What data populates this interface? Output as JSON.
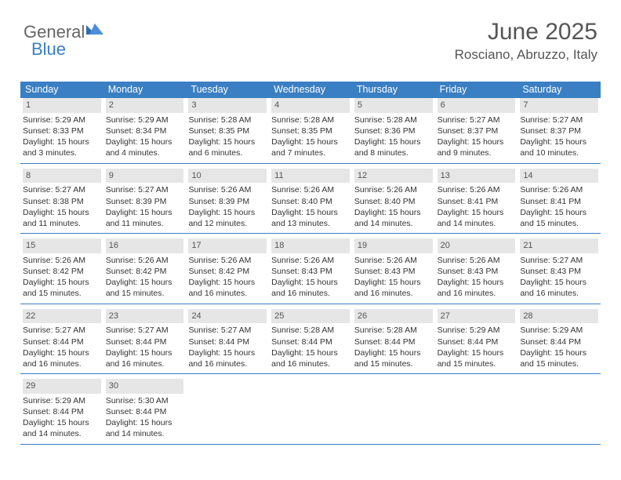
{
  "logo": {
    "general": "General",
    "blue": "Blue"
  },
  "header": {
    "month_title": "June 2025",
    "location": "Rosciano, Abruzzo, Italy"
  },
  "colors": {
    "header_bg": "#3a7fc4",
    "header_text": "#ffffff",
    "daynum_bg": "#e6e6e6",
    "rule": "#3a7fc4",
    "body_text": "#333333",
    "title_text": "#555555"
  },
  "day_names": [
    "Sunday",
    "Monday",
    "Tuesday",
    "Wednesday",
    "Thursday",
    "Friday",
    "Saturday"
  ],
  "weeks": [
    [
      {
        "n": "1",
        "sunrise": "5:29 AM",
        "sunset": "8:33 PM",
        "daylight": "15 hours and 3 minutes."
      },
      {
        "n": "2",
        "sunrise": "5:29 AM",
        "sunset": "8:34 PM",
        "daylight": "15 hours and 4 minutes."
      },
      {
        "n": "3",
        "sunrise": "5:28 AM",
        "sunset": "8:35 PM",
        "daylight": "15 hours and 6 minutes."
      },
      {
        "n": "4",
        "sunrise": "5:28 AM",
        "sunset": "8:35 PM",
        "daylight": "15 hours and 7 minutes."
      },
      {
        "n": "5",
        "sunrise": "5:28 AM",
        "sunset": "8:36 PM",
        "daylight": "15 hours and 8 minutes."
      },
      {
        "n": "6",
        "sunrise": "5:27 AM",
        "sunset": "8:37 PM",
        "daylight": "15 hours and 9 minutes."
      },
      {
        "n": "7",
        "sunrise": "5:27 AM",
        "sunset": "8:37 PM",
        "daylight": "15 hours and 10 minutes."
      }
    ],
    [
      {
        "n": "8",
        "sunrise": "5:27 AM",
        "sunset": "8:38 PM",
        "daylight": "15 hours and 11 minutes."
      },
      {
        "n": "9",
        "sunrise": "5:27 AM",
        "sunset": "8:39 PM",
        "daylight": "15 hours and 11 minutes."
      },
      {
        "n": "10",
        "sunrise": "5:26 AM",
        "sunset": "8:39 PM",
        "daylight": "15 hours and 12 minutes."
      },
      {
        "n": "11",
        "sunrise": "5:26 AM",
        "sunset": "8:40 PM",
        "daylight": "15 hours and 13 minutes."
      },
      {
        "n": "12",
        "sunrise": "5:26 AM",
        "sunset": "8:40 PM",
        "daylight": "15 hours and 14 minutes."
      },
      {
        "n": "13",
        "sunrise": "5:26 AM",
        "sunset": "8:41 PM",
        "daylight": "15 hours and 14 minutes."
      },
      {
        "n": "14",
        "sunrise": "5:26 AM",
        "sunset": "8:41 PM",
        "daylight": "15 hours and 15 minutes."
      }
    ],
    [
      {
        "n": "15",
        "sunrise": "5:26 AM",
        "sunset": "8:42 PM",
        "daylight": "15 hours and 15 minutes."
      },
      {
        "n": "16",
        "sunrise": "5:26 AM",
        "sunset": "8:42 PM",
        "daylight": "15 hours and 15 minutes."
      },
      {
        "n": "17",
        "sunrise": "5:26 AM",
        "sunset": "8:42 PM",
        "daylight": "15 hours and 16 minutes."
      },
      {
        "n": "18",
        "sunrise": "5:26 AM",
        "sunset": "8:43 PM",
        "daylight": "15 hours and 16 minutes."
      },
      {
        "n": "19",
        "sunrise": "5:26 AM",
        "sunset": "8:43 PM",
        "daylight": "15 hours and 16 minutes."
      },
      {
        "n": "20",
        "sunrise": "5:26 AM",
        "sunset": "8:43 PM",
        "daylight": "15 hours and 16 minutes."
      },
      {
        "n": "21",
        "sunrise": "5:27 AM",
        "sunset": "8:43 PM",
        "daylight": "15 hours and 16 minutes."
      }
    ],
    [
      {
        "n": "22",
        "sunrise": "5:27 AM",
        "sunset": "8:44 PM",
        "daylight": "15 hours and 16 minutes."
      },
      {
        "n": "23",
        "sunrise": "5:27 AM",
        "sunset": "8:44 PM",
        "daylight": "15 hours and 16 minutes."
      },
      {
        "n": "24",
        "sunrise": "5:27 AM",
        "sunset": "8:44 PM",
        "daylight": "15 hours and 16 minutes."
      },
      {
        "n": "25",
        "sunrise": "5:28 AM",
        "sunset": "8:44 PM",
        "daylight": "15 hours and 16 minutes."
      },
      {
        "n": "26",
        "sunrise": "5:28 AM",
        "sunset": "8:44 PM",
        "daylight": "15 hours and 15 minutes."
      },
      {
        "n": "27",
        "sunrise": "5:29 AM",
        "sunset": "8:44 PM",
        "daylight": "15 hours and 15 minutes."
      },
      {
        "n": "28",
        "sunrise": "5:29 AM",
        "sunset": "8:44 PM",
        "daylight": "15 hours and 15 minutes."
      }
    ],
    [
      {
        "n": "29",
        "sunrise": "5:29 AM",
        "sunset": "8:44 PM",
        "daylight": "15 hours and 14 minutes."
      },
      {
        "n": "30",
        "sunrise": "5:30 AM",
        "sunset": "8:44 PM",
        "daylight": "15 hours and 14 minutes."
      },
      null,
      null,
      null,
      null,
      null
    ]
  ],
  "labels": {
    "sunrise_prefix": "Sunrise: ",
    "sunset_prefix": "Sunset: ",
    "daylight_prefix": "Daylight: "
  }
}
